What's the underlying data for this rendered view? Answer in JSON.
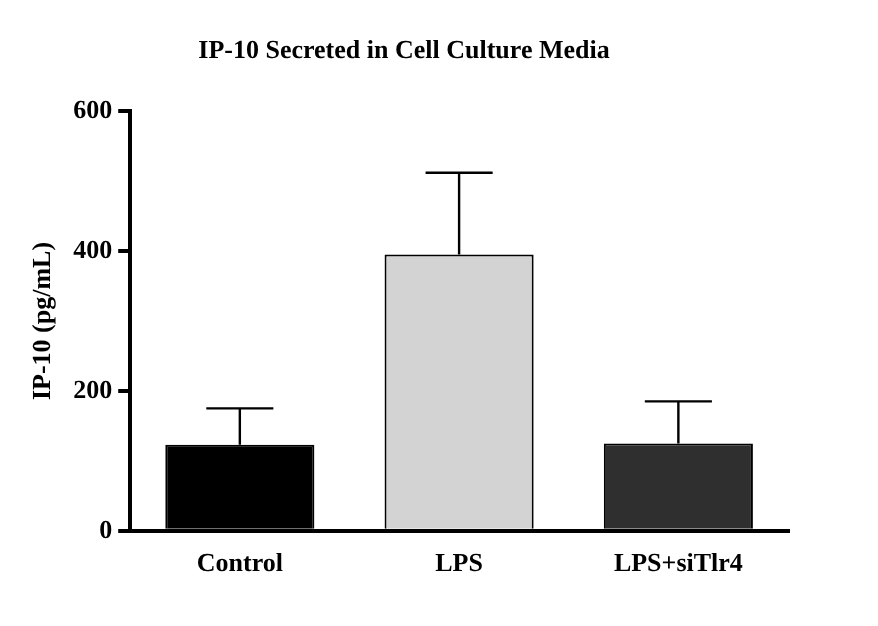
{
  "chart_data": {
    "type": "bar",
    "title": "IP-10 Secreted in Cell Culture Media",
    "ylabel": "IP-10 (pg/mL)",
    "categories": [
      "Control",
      "LPS",
      "LPS+siTlr4"
    ],
    "values": [
      123,
      395,
      125
    ],
    "colors": [
      "#000000",
      "#d3d3d3",
      "#2f2f2f"
    ],
    "errors": [
      [
        123,
        175
      ],
      [
        395,
        512
      ],
      [
        125,
        185
      ]
    ],
    "ylim": [
      0,
      600
    ],
    "yticks": [
      0,
      200,
      400,
      600
    ],
    "grid": false,
    "legend": false
  }
}
